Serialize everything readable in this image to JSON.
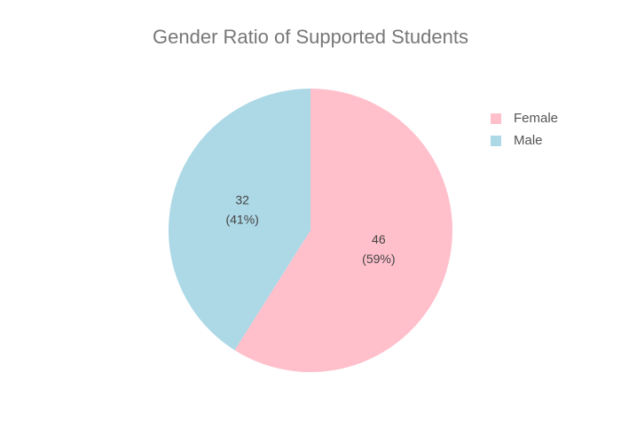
{
  "chart_data": {
    "type": "pie",
    "title": "Gender Ratio of Supported Students",
    "categories": [
      "Female",
      "Male"
    ],
    "values": [
      46,
      32
    ],
    "percent_labels": [
      "(59%)",
      "(41%)"
    ],
    "colors": [
      "#ffc0cb",
      "#add8e6"
    ],
    "legend": "top-right"
  }
}
